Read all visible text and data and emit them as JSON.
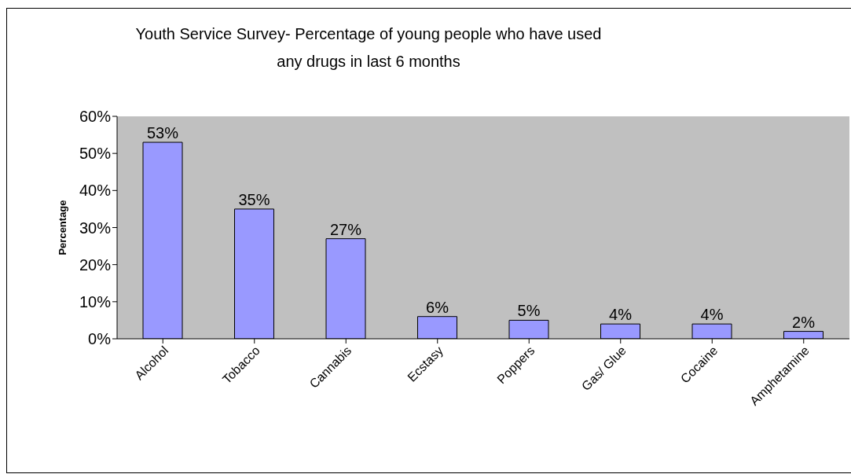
{
  "chart_data": {
    "type": "bar",
    "title": "Youth Service Survey- Percentage of young people who have used any drugs in last 6 months",
    "ylabel": "Percentage",
    "categories": [
      "Alcohol",
      "Tobacco",
      "Cannabis",
      "Ecstasy",
      "Poppers",
      "Gas/ Glue",
      "Cocaine",
      "Amphetamine"
    ],
    "values": [
      53,
      35,
      27,
      6,
      5,
      4,
      4,
      2
    ],
    "value_labels": [
      "53%",
      "35%",
      "27%",
      "6%",
      "5%",
      "4%",
      "4%",
      "2%"
    ],
    "color": "#9999ff",
    "ylim": [
      0,
      60
    ],
    "yticks": [
      {
        "value": 0,
        "label": "0%"
      },
      {
        "value": 10,
        "label": "10%"
      },
      {
        "value": 20,
        "label": "20%"
      },
      {
        "value": 30,
        "label": "30%"
      },
      {
        "value": 40,
        "label": "40%"
      },
      {
        "value": 50,
        "label": "50%"
      },
      {
        "value": 60,
        "label": "60%"
      }
    ],
    "grid": false,
    "legend": false
  }
}
